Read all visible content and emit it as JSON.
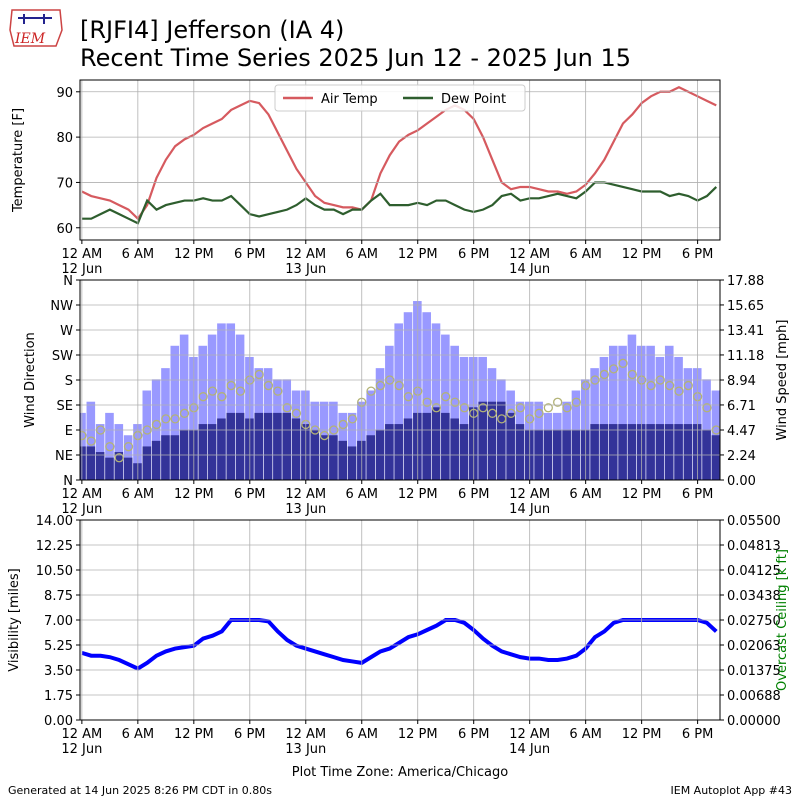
{
  "logo_text": "IEM",
  "title": [
    "[RJFI4] Jefferson (IA 4)",
    "Recent Time Series 2025 Jun 12 - 2025 Jun 15"
  ],
  "xlabel": "Plot Time Zone: America/Chicago",
  "footer_left": "Generated at 14 Jun 2025 8:26 PM CDT in 0.80s",
  "footer_right": "IEM Autoplot App #43",
  "chart_data": [
    {
      "type": "line",
      "ylabel": "Temperature [F]",
      "grid": true,
      "legend": "upper center",
      "xlim": [
        -0.2,
        68.4
      ],
      "ylim": [
        57.3,
        92.6
      ],
      "yticks": [
        60,
        70,
        80,
        90
      ],
      "xticks": [
        {
          "value": 0,
          "label": "12 AM\n12 Jun"
        },
        {
          "value": 6,
          "label": "6 AM"
        },
        {
          "value": 12,
          "label": "12 PM"
        },
        {
          "value": 18,
          "label": "6 PM"
        },
        {
          "value": 24,
          "label": "12 AM\n13 Jun"
        },
        {
          "value": 30,
          "label": "6 AM"
        },
        {
          "value": 36,
          "label": "12 PM"
        },
        {
          "value": 42,
          "label": "6 PM"
        },
        {
          "value": 48,
          "label": "12 AM\n14 Jun"
        },
        {
          "value": 54,
          "label": "6 AM"
        },
        {
          "value": 60,
          "label": "12 PM"
        },
        {
          "value": 66,
          "label": "6 PM"
        }
      ],
      "x": [
        0,
        1,
        2,
        3,
        4,
        5,
        6,
        7,
        8,
        9,
        10,
        11,
        12,
        13,
        14,
        15,
        16,
        17,
        18,
        19,
        20,
        21,
        22,
        23,
        24,
        25,
        26,
        27,
        28,
        29,
        30,
        31,
        32,
        33,
        34,
        35,
        36,
        37,
        38,
        39,
        40,
        41,
        42,
        43,
        44,
        45,
        46,
        47,
        48,
        49,
        50,
        51,
        52,
        53,
        54,
        55,
        56,
        57,
        58,
        59,
        60,
        61,
        62,
        63,
        64,
        65,
        66,
        67,
        68
      ],
      "series": [
        {
          "name": "Air Temp",
          "color": "#d65a5f",
          "values": [
            68,
            67,
            66.5,
            66,
            65,
            64,
            62,
            65,
            71,
            75,
            78,
            79.5,
            80.5,
            82,
            83,
            84,
            86,
            87,
            88,
            87.5,
            85,
            81,
            77,
            73,
            70,
            67,
            65.5,
            65,
            64.5,
            64.5,
            64,
            66,
            72,
            76,
            79,
            80.5,
            81.5,
            83,
            84.5,
            86,
            87,
            86,
            84,
            80,
            75,
            70,
            68.5,
            69,
            69,
            68.5,
            68,
            68,
            67.5,
            68,
            69.5,
            72,
            75,
            79,
            83,
            85,
            87.5,
            89,
            90,
            90,
            91,
            90,
            89,
            88,
            87
          ]
        },
        {
          "name": "Dew Point",
          "color": "#2e5e2e",
          "values": [
            62,
            62,
            63,
            64,
            63,
            62,
            61,
            66,
            64,
            65,
            65.5,
            66,
            66,
            66.5,
            66,
            66,
            67,
            65,
            63,
            62.5,
            63,
            63.5,
            64,
            65,
            66.5,
            65,
            64,
            64,
            63,
            64,
            64,
            66,
            67.5,
            65,
            65,
            65,
            65.5,
            65,
            66,
            66,
            65,
            64,
            63.5,
            64,
            65,
            67,
            67.5,
            66,
            66.5,
            66.5,
            67,
            67.5,
            67,
            66.5,
            68,
            70,
            70,
            69.5,
            69,
            68.5,
            68,
            68,
            68,
            67,
            67.5,
            67,
            66,
            67,
            69
          ]
        }
      ]
    },
    {
      "type": "bar",
      "ylabel": "Wind Direction",
      "y2label": "Wind Speed [mph]",
      "grid": true,
      "xlim": [
        -0.2,
        68.4
      ],
      "ylim": [
        0,
        360
      ],
      "yticks": [
        {
          "value": 0,
          "label": "N"
        },
        {
          "value": 45,
          "label": "NE"
        },
        {
          "value": 90,
          "label": "E"
        },
        {
          "value": 135,
          "label": "SE"
        },
        {
          "value": 180,
          "label": "S"
        },
        {
          "value": 225,
          "label": "SW"
        },
        {
          "value": 270,
          "label": "W"
        },
        {
          "value": 315,
          "label": "NW"
        },
        {
          "value": 360,
          "label": "N"
        }
      ],
      "y2lim": [
        0,
        17.88
      ],
      "y2ticks": [
        {
          "value": 0,
          "label": "0.00"
        },
        2.24,
        4.47,
        6.71,
        8.94,
        11.18,
        13.41,
        15.65,
        17.88
      ],
      "xticks": [
        {
          "value": 0,
          "label": "12 AM\n12 Jun"
        },
        {
          "value": 6,
          "label": "6 AM"
        },
        {
          "value": 12,
          "label": "12 PM"
        },
        {
          "value": 18,
          "label": "6 PM"
        },
        {
          "value": 24,
          "label": "12 AM\n13 Jun"
        },
        {
          "value": 30,
          "label": "6 AM"
        },
        {
          "value": 36,
          "label": "12 PM"
        },
        {
          "value": 42,
          "label": "6 PM"
        },
        {
          "value": 48,
          "label": "12 AM\n14 Jun"
        },
        {
          "value": 54,
          "label": "6 AM"
        },
        {
          "value": 60,
          "label": "12 PM"
        },
        {
          "value": 66,
          "label": "6 PM"
        }
      ],
      "x": [
        0,
        1,
        2,
        3,
        4,
        5,
        6,
        7,
        8,
        9,
        10,
        11,
        12,
        13,
        14,
        15,
        16,
        17,
        18,
        19,
        20,
        21,
        22,
        23,
        24,
        25,
        26,
        27,
        28,
        29,
        30,
        31,
        32,
        33,
        34,
        35,
        36,
        37,
        38,
        39,
        40,
        41,
        42,
        43,
        44,
        45,
        46,
        47,
        48,
        49,
        50,
        51,
        52,
        53,
        54,
        55,
        56,
        57,
        58,
        59,
        60,
        61,
        62,
        63,
        64,
        65,
        66,
        67,
        68
      ],
      "series": [
        {
          "type": "bar",
          "axis": "y2",
          "color": "#9999ff",
          "values": [
            6,
            7,
            5,
            6,
            5,
            4,
            5,
            8,
            9,
            10,
            12,
            13,
            11,
            12,
            13,
            14,
            14,
            13,
            11,
            10,
            10,
            9,
            9,
            8,
            8,
            7,
            7,
            7,
            6,
            6,
            7,
            8,
            10,
            12,
            14,
            15,
            16,
            15,
            14,
            13,
            12,
            11,
            11,
            11,
            10,
            9,
            8,
            7,
            7,
            7,
            6,
            6,
            7,
            8,
            9,
            10,
            11,
            12,
            12,
            13,
            12,
            12,
            11,
            12,
            11,
            10,
            10,
            9,
            8
          ]
        },
        {
          "type": "bar",
          "axis": "y2",
          "color": "#333399",
          "values": [
            3,
            3,
            2.5,
            2,
            2.5,
            2,
            1.5,
            3,
            3.5,
            4,
            4,
            4.5,
            4.5,
            5,
            5,
            5.5,
            6,
            6,
            5.5,
            6,
            6,
            6,
            6,
            5.5,
            5,
            4.5,
            4,
            4,
            3.5,
            3,
            3.5,
            4,
            4.5,
            5,
            5,
            5.5,
            6,
            6,
            6.5,
            6,
            5.5,
            5,
            6.5,
            7,
            7,
            7,
            6,
            5,
            4.5,
            4.5,
            4.5,
            4.5,
            4.5,
            4.5,
            4.5,
            5,
            5,
            5,
            5,
            5,
            5,
            5,
            5,
            5,
            5,
            5,
            5,
            4.5,
            4
          ]
        },
        {
          "type": "scatter",
          "color": "#b3b376",
          "values": [
            80,
            70,
            90,
            60,
            40,
            60,
            80,
            90,
            100,
            110,
            110,
            120,
            130,
            150,
            160,
            150,
            170,
            160,
            180,
            190,
            170,
            160,
            130,
            120,
            100,
            90,
            80,
            90,
            100,
            110,
            140,
            160,
            170,
            180,
            170,
            150,
            160,
            140,
            130,
            150,
            140,
            130,
            120,
            130,
            120,
            110,
            120,
            130,
            110,
            120,
            130,
            140,
            130,
            140,
            170,
            180,
            190,
            200,
            210,
            190,
            180,
            170,
            180,
            170,
            160,
            170,
            150,
            130,
            90
          ]
        }
      ]
    },
    {
      "type": "line",
      "ylabel": "Visibility [miles]",
      "y2label": "Overcast Ceiling [k ft]",
      "y2label_color": "#008000",
      "grid": true,
      "xlim": [
        -0.2,
        68.4
      ],
      "ylim": [
        0,
        14
      ],
      "yticks": [
        {
          "value": 0,
          "label": "0.00"
        },
        1.75,
        {
          "value": 3.5,
          "label": "3.50"
        },
        5.25,
        {
          "value": 7,
          "label": "7.00"
        },
        8.75,
        {
          "value": 10.5,
          "label": "10.50"
        },
        12.25,
        {
          "value": 14,
          "label": "14.00"
        }
      ],
      "y2lim": [
        0,
        0.055
      ],
      "y2ticks": [
        {
          "value": 0,
          "label": "0.00000"
        },
        {
          "value": 0.006875,
          "label": "0.00688"
        },
        {
          "value": 0.01375,
          "label": "0.01375"
        },
        {
          "value": 0.020625,
          "label": "0.02063"
        },
        {
          "value": 0.0275,
          "label": "0.02750"
        },
        {
          "value": 0.034375,
          "label": "0.03438"
        },
        {
          "value": 0.04125,
          "label": "0.04125"
        },
        {
          "value": 0.048125,
          "label": "0.04813"
        },
        {
          "value": 0.055,
          "label": "0.05500"
        }
      ],
      "xticks": [
        {
          "value": 0,
          "label": "12 AM\n12 Jun"
        },
        {
          "value": 6,
          "label": "6 AM"
        },
        {
          "value": 12,
          "label": "12 PM"
        },
        {
          "value": 18,
          "label": "6 PM"
        },
        {
          "value": 24,
          "label": "12 AM\n13 Jun"
        },
        {
          "value": 30,
          "label": "6 AM"
        },
        {
          "value": 36,
          "label": "12 PM"
        },
        {
          "value": 42,
          "label": "6 PM"
        },
        {
          "value": 48,
          "label": "12 AM\n14 Jun"
        },
        {
          "value": 54,
          "label": "6 AM"
        },
        {
          "value": 60,
          "label": "12 PM"
        },
        {
          "value": 66,
          "label": "6 PM"
        }
      ],
      "x": [
        0,
        1,
        2,
        3,
        4,
        5,
        6,
        7,
        8,
        9,
        10,
        11,
        12,
        13,
        14,
        15,
        16,
        17,
        18,
        19,
        20,
        21,
        22,
        23,
        24,
        25,
        26,
        27,
        28,
        29,
        30,
        31,
        32,
        33,
        34,
        35,
        36,
        37,
        38,
        39,
        40,
        41,
        42,
        43,
        44,
        45,
        46,
        47,
        48,
        49,
        50,
        51,
        52,
        53,
        54,
        55,
        56,
        57,
        58,
        59,
        60,
        61,
        62,
        63,
        64,
        65,
        66,
        67,
        68
      ],
      "series": [
        {
          "type": "line",
          "color": "#0000ff",
          "values": [
            4.7,
            4.5,
            4.5,
            4.4,
            4.2,
            3.9,
            3.6,
            4,
            4.5,
            4.8,
            5,
            5.1,
            5.2,
            5.7,
            5.9,
            6.2,
            7,
            7,
            7,
            7,
            6.9,
            6.2,
            5.6,
            5.2,
            5,
            4.8,
            4.6,
            4.4,
            4.2,
            4.1,
            4,
            4.4,
            4.8,
            5,
            5.4,
            5.8,
            6,
            6.3,
            6.6,
            7,
            7,
            6.8,
            6.3,
            5.7,
            5.2,
            4.8,
            4.6,
            4.4,
            4.3,
            4.3,
            4.2,
            4.2,
            4.3,
            4.5,
            5,
            5.8,
            6.2,
            6.8,
            7,
            7,
            7,
            7,
            7,
            7,
            7,
            7,
            7,
            6.8,
            6.2
          ]
        }
      ]
    }
  ]
}
